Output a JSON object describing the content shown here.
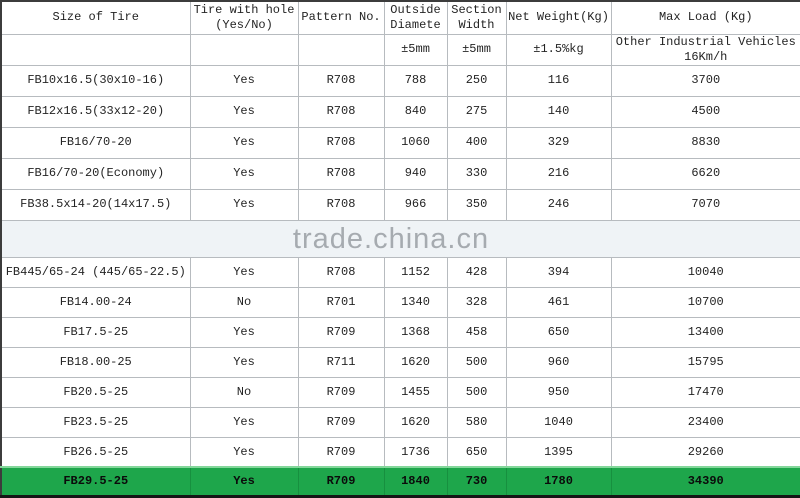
{
  "colors": {
    "highlight_green": "#1ea64b",
    "band_background": "#eff3f6",
    "grid_line": "#b7bbbf"
  },
  "table": {
    "columns": [
      {
        "title": "Size of Tire",
        "sub": ""
      },
      {
        "title": "Tire with hole (Yes/No)",
        "sub": ""
      },
      {
        "title": "Pattern No.",
        "sub": ""
      },
      {
        "title": "Outside Diamete",
        "sub": "±5mm"
      },
      {
        "title": "Section Width",
        "sub": "±5mm"
      },
      {
        "title": "Net Weight(Kg)",
        "sub": "±1.5%kg"
      },
      {
        "title": "Max Load (Kg)",
        "sub": "Other Industrial Vehicles 16Km/h"
      }
    ],
    "watermark_band": {
      "before_row_index": 5,
      "text": "trade.china.cn"
    },
    "rows": [
      {
        "cells": [
          "FB10x16.5(30x10-16)",
          "Yes",
          "R708",
          "788",
          "250",
          "116",
          "3700"
        ]
      },
      {
        "cells": [
          "FB12x16.5(33x12-20)",
          "Yes",
          "R708",
          "840",
          "275",
          "140",
          "4500"
        ]
      },
      {
        "cells": [
          "FB16/70-20",
          "Yes",
          "R708",
          "1060",
          "400",
          "329",
          "8830"
        ]
      },
      {
        "cells": [
          "FB16/70-20(Economy)",
          "Yes",
          "R708",
          "940",
          "330",
          "216",
          "6620"
        ]
      },
      {
        "cells": [
          "FB38.5x14-20(14x17.5)",
          "Yes",
          "R708",
          "966",
          "350",
          "246",
          "7070"
        ]
      },
      {
        "cells": [
          "FB445/65-24 (445/65-22.5)",
          "Yes",
          "R708",
          "1152",
          "428",
          "394",
          "10040"
        ]
      },
      {
        "cells": [
          "FB14.00-24",
          "No",
          "R701",
          "1340",
          "328",
          "461",
          "10700"
        ]
      },
      {
        "cells": [
          "FB17.5-25",
          "Yes",
          "R709",
          "1368",
          "458",
          "650",
          "13400"
        ]
      },
      {
        "cells": [
          "FB18.00-25",
          "Yes",
          "R711",
          "1620",
          "500",
          "960",
          "15795"
        ]
      },
      {
        "cells": [
          "FB20.5-25",
          "No",
          "R709",
          "1455",
          "500",
          "950",
          "17470"
        ]
      },
      {
        "cells": [
          "FB23.5-25",
          "Yes",
          "R709",
          "1620",
          "580",
          "1040",
          "23400"
        ]
      },
      {
        "cells": [
          "FB26.5-25",
          "Yes",
          "R709",
          "1736",
          "650",
          "1395",
          "29260"
        ]
      },
      {
        "cells": [
          "FB29.5-25",
          "Yes",
          "R709",
          "1840",
          "730",
          "1780",
          "34390"
        ],
        "highlight": true
      }
    ]
  }
}
